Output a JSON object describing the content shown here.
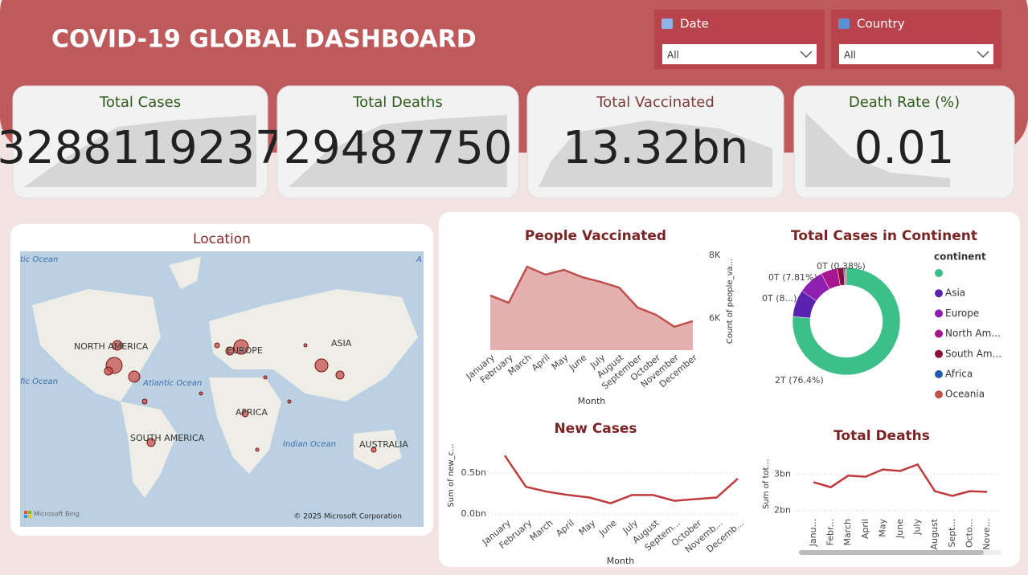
{
  "header": {
    "title": "COVID-19 GLOBAL DASHBOARD"
  },
  "filters": [
    {
      "label": "Date",
      "value": "All"
    },
    {
      "label": "Country",
      "value": "All"
    }
  ],
  "kpis": [
    {
      "label": "Total Cases",
      "value": "3288119237"
    },
    {
      "label": "Total Deaths",
      "value": "29487750"
    },
    {
      "label": "Total Vaccinated",
      "value": "13.32bn"
    },
    {
      "label": "Death Rate (%)",
      "value": "0.01"
    }
  ],
  "map": {
    "title": "Location",
    "labels": [
      "NORTH AMERICA",
      "EUROPE",
      "ASIA",
      "AFRICA",
      "SOUTH AMERICA",
      "AUSTRALIA",
      "Atlantic Ocean",
      "Indian Ocean",
      "tic Ocean",
      "fic Ocean",
      "A"
    ],
    "provider": "Microsoft Bing",
    "attribution": "© 2025 Microsoft Corporation"
  },
  "chart_data": [
    {
      "type": "area",
      "title": "People Vaccinated",
      "x_label": "Month",
      "y_label": "Count of people_va...",
      "categories": [
        "January",
        "February",
        "March",
        "April",
        "May",
        "June",
        "July",
        "August",
        "September",
        "October",
        "November",
        "December"
      ],
      "values": [
        6730,
        6500,
        7640,
        7390,
        7540,
        7310,
        7160,
        6980,
        6350,
        6120,
        5740,
        5920
      ],
      "color": "#c0504d",
      "ylim": [
        5000,
        8000
      ],
      "yticks": [
        {
          "value": 6000,
          "label": "6K"
        },
        {
          "value": 8000,
          "label": "8K"
        }
      ]
    },
    {
      "type": "line",
      "title": "New Cases",
      "x_label": "Month",
      "y_label": "Sum of new_c...",
      "categories": [
        "January",
        "February",
        "March",
        "April",
        "May",
        "June",
        "July",
        "August",
        "Septem...",
        "October",
        "Novemb...",
        "Decemb..."
      ],
      "values": [
        0.71,
        0.33,
        0.27,
        0.23,
        0.2,
        0.13,
        0.23,
        0.23,
        0.16,
        0.18,
        0.2,
        0.43
      ],
      "color": "#c0393b",
      "ylim": [
        0,
        0.8
      ],
      "yticks": [
        {
          "value": 0,
          "label": "0.0bn"
        },
        {
          "value": 0.5,
          "label": "0.5bn"
        }
      ],
      "grid": true
    },
    {
      "type": "line",
      "title": "Total Deaths",
      "y_label": "Sum of tot...",
      "categories": [
        "Janu...",
        "Febr...",
        "March",
        "April",
        "May",
        "June",
        "July",
        "August",
        "Sept...",
        "Octo...",
        "Nove..."
      ],
      "values": [
        2.78,
        2.64,
        2.96,
        2.93,
        3.13,
        3.09,
        3.27,
        2.53,
        2.4,
        2.53,
        2.51
      ],
      "color": "#c0393b",
      "ylim": [
        1.9,
        3.4
      ],
      "yticks": [
        {
          "value": 2,
          "label": "2bn"
        },
        {
          "value": 3,
          "label": "3bn"
        }
      ],
      "grid": true
    },
    {
      "type": "donut",
      "title": "Total Cases in Continent",
      "legend_title": "continent",
      "categories": [
        null,
        "Asia",
        "Europe",
        "North Am...",
        "South Am...",
        "Africa",
        "Oceania"
      ],
      "values": [
        76.4,
        8.1,
        7.81,
        5.0,
        1.9,
        0.41,
        0.38
      ],
      "value_labels": [
        "2T (76.4%)",
        "0T (8...)",
        "0T (7.81%)",
        null,
        null,
        null,
        "0T (0.38%)"
      ],
      "colors": [
        "#3dbf8a",
        "#5b22b0",
        "#8e1fb0",
        "#a6168e",
        "#8b0e3a",
        "#1f5fa8",
        "#c0504d"
      ]
    }
  ]
}
